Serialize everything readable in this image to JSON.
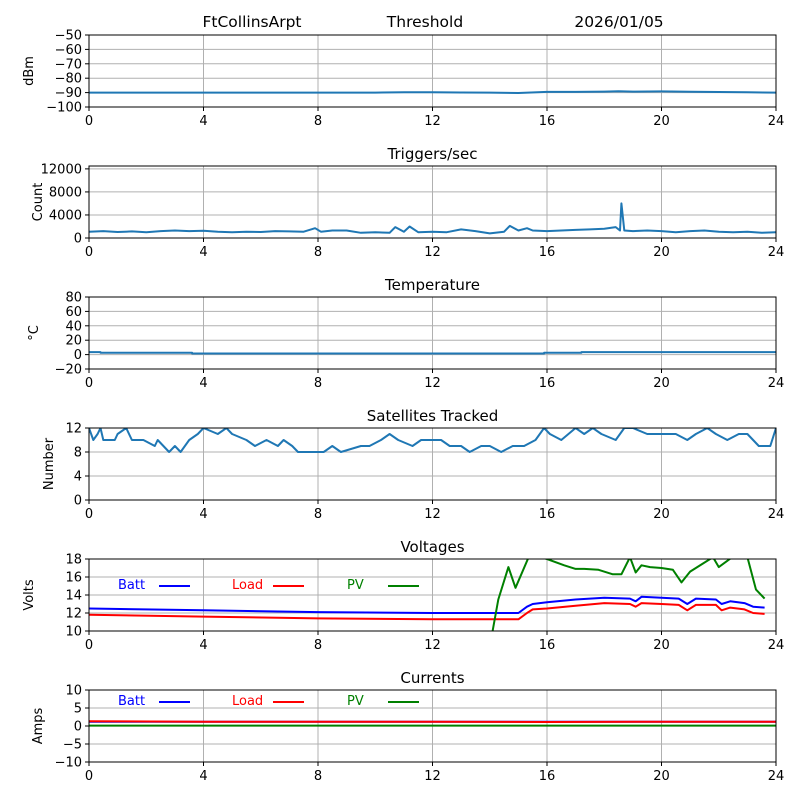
{
  "header": {
    "station": "FtCollinsArpt",
    "mode": "Threshold",
    "date": "2026/01/05"
  },
  "chart_data": [
    {
      "id": "threshold",
      "type": "line",
      "title": "",
      "xlabel": "",
      "ylabel": "dBm",
      "xlim": [
        0,
        24
      ],
      "ylim": [
        -100,
        -50
      ],
      "xticks": [
        0,
        4,
        8,
        12,
        16,
        20,
        24
      ],
      "yticks": [
        -100,
        -90,
        -80,
        -70,
        -60,
        -50
      ],
      "ytick_labels": [
        "−100",
        "−90",
        "−80",
        "−70",
        "−60",
        "−50"
      ],
      "grid": true,
      "series": [
        {
          "name": "Threshold",
          "color": "#1f77b4",
          "x": [
            0,
            2,
            4,
            6,
            8,
            10,
            11,
            12,
            13,
            14,
            15,
            16,
            17,
            18,
            18.5,
            19,
            20,
            21,
            22,
            23,
            24
          ],
          "y": [
            -90,
            -90,
            -90,
            -90,
            -90,
            -90,
            -89.8,
            -89.7,
            -89.9,
            -90,
            -90.3,
            -89.5,
            -89.5,
            -89.3,
            -89.0,
            -89.3,
            -89.2,
            -89.4,
            -89.6,
            -89.8,
            -90
          ]
        }
      ]
    },
    {
      "id": "triggers",
      "type": "line",
      "title": "Triggers/sec",
      "xlabel": "",
      "ylabel": "Count",
      "xlim": [
        0,
        24
      ],
      "ylim": [
        0,
        12500
      ],
      "xticks": [
        0,
        4,
        8,
        12,
        16,
        20,
        24
      ],
      "yticks": [
        0,
        4000,
        8000,
        12000
      ],
      "ytick_labels": [
        "0",
        "4000",
        "8000",
        "12000"
      ],
      "grid": true,
      "series": [
        {
          "name": "Triggers",
          "color": "#1f77b4",
          "x": [
            0,
            0.5,
            1,
            1.5,
            2,
            2.5,
            3,
            3.5,
            4,
            4.5,
            5,
            5.5,
            6,
            6.5,
            7,
            7.5,
            7.9,
            8.1,
            8.5,
            9,
            9.5,
            10,
            10.5,
            10.7,
            11,
            11.2,
            11.5,
            12,
            12.5,
            13,
            13.5,
            14,
            14.5,
            14.7,
            15,
            15.3,
            15.5,
            16,
            16.5,
            17,
            17.5,
            18,
            18.4,
            18.55,
            18.6,
            18.7,
            19,
            19.5,
            20,
            20.5,
            21,
            21.5,
            22,
            22.5,
            23,
            23.5,
            24
          ],
          "y": [
            1100,
            1200,
            1050,
            1150,
            1000,
            1200,
            1300,
            1200,
            1250,
            1100,
            1000,
            1100,
            1050,
            1200,
            1150,
            1100,
            1700,
            1100,
            1300,
            1300,
            900,
            1000,
            900,
            1900,
            1100,
            2000,
            1000,
            1100,
            1000,
            1500,
            1200,
            800,
            1100,
            2100,
            1300,
            1700,
            1300,
            1200,
            1300,
            1400,
            1500,
            1600,
            1900,
            1300,
            6000,
            1300,
            1200,
            1300,
            1200,
            1000,
            1200,
            1300,
            1100,
            1000,
            1100,
            900,
            1000
          ]
        }
      ]
    },
    {
      "id": "temperature",
      "type": "line",
      "title": "Temperature",
      "xlabel": "",
      "ylabel": "°C",
      "xlim": [
        0,
        24
      ],
      "ylim": [
        -20,
        80
      ],
      "xticks": [
        0,
        4,
        8,
        12,
        16,
        20,
        24
      ],
      "yticks": [
        -20,
        0,
        20,
        40,
        60,
        80
      ],
      "ytick_labels": [
        "−20",
        "0",
        "20",
        "40",
        "60",
        "80"
      ],
      "grid": true,
      "series": [
        {
          "name": "Temperature",
          "color": "#1f77b4",
          "x": [
            0,
            0.4,
            0.4,
            3.6,
            3.6,
            15.9,
            15.9,
            17.2,
            17.2,
            24
          ],
          "y": [
            3.5,
            3.5,
            2.5,
            2.5,
            1.5,
            1.5,
            2.5,
            2.5,
            3.5,
            3.5
          ]
        }
      ]
    },
    {
      "id": "satellites",
      "type": "line",
      "title": "Satellites Tracked",
      "xlabel": "",
      "ylabel": "Number",
      "xlim": [
        0,
        24
      ],
      "ylim": [
        0,
        12
      ],
      "xticks": [
        0,
        4,
        8,
        12,
        16,
        20,
        24
      ],
      "yticks": [
        0,
        4,
        8,
        12
      ],
      "ytick_labels": [
        "0",
        "4",
        "8",
        "12"
      ],
      "grid": true,
      "series": [
        {
          "name": "Satellites",
          "color": "#1f77b4",
          "x": [
            0,
            0.15,
            0.3,
            0.4,
            0.5,
            0.9,
            1.0,
            1.3,
            1.5,
            1.9,
            2.3,
            2.4,
            2.8,
            3.0,
            3.2,
            3.5,
            3.8,
            4.0,
            4.5,
            4.8,
            5.0,
            5.5,
            5.8,
            6.2,
            6.6,
            6.8,
            7.1,
            7.3,
            7.5,
            7.9,
            8.2,
            8.5,
            8.8,
            9.5,
            9.8,
            10.2,
            10.5,
            10.8,
            11.3,
            11.6,
            12.0,
            12.3,
            12.6,
            13.0,
            13.3,
            13.7,
            14.0,
            14.4,
            14.8,
            15.2,
            15.6,
            15.9,
            16.1,
            16.5,
            17.0,
            17.3,
            17.6,
            17.9,
            18.4,
            18.7,
            19.0,
            19.5,
            20.0,
            20.5,
            20.9,
            21.2,
            21.6,
            21.9,
            22.3,
            22.7,
            23.0,
            23.4,
            23.8,
            24
          ],
          "y": [
            12,
            10,
            11,
            12,
            10,
            10,
            11,
            12,
            10,
            10,
            9,
            10,
            8,
            9,
            8,
            10,
            11,
            12,
            11,
            12,
            11,
            10,
            9,
            10,
            9,
            10,
            9,
            8,
            8,
            8,
            8,
            9,
            8,
            9,
            9,
            10,
            11,
            10,
            9,
            10,
            10,
            10,
            9,
            9,
            8,
            9,
            9,
            8,
            9,
            9,
            10,
            12,
            11,
            10,
            12,
            11,
            12,
            11,
            10,
            12,
            12,
            11,
            11,
            11,
            10,
            11,
            12,
            11,
            10,
            11,
            11,
            9,
            9,
            12
          ]
        }
      ]
    },
    {
      "id": "voltages",
      "type": "line",
      "title": "Voltages",
      "xlabel": "",
      "ylabel": "Volts",
      "xlim": [
        0,
        24
      ],
      "ylim": [
        10,
        18
      ],
      "xticks": [
        0,
        4,
        8,
        12,
        16,
        20,
        24
      ],
      "yticks": [
        10,
        12,
        14,
        16,
        18
      ],
      "ytick_labels": [
        "10",
        "12",
        "14",
        "16",
        "18"
      ],
      "grid": true,
      "legend": "top-left-inline",
      "series": [
        {
          "name": "Batt",
          "color": "#0000ff",
          "x": [
            0,
            4,
            8,
            12,
            15.0,
            15.3,
            15.5,
            16,
            17,
            18,
            18.9,
            19.1,
            19.3,
            20,
            20.6,
            20.9,
            21.2,
            21.9,
            22.1,
            22.4,
            22.9,
            23.2,
            23.6
          ],
          "y": [
            12.5,
            12.3,
            12.1,
            12.0,
            12.0,
            12.7,
            13.0,
            13.2,
            13.5,
            13.7,
            13.6,
            13.3,
            13.8,
            13.7,
            13.6,
            13.0,
            13.6,
            13.5,
            13.0,
            13.3,
            13.1,
            12.7,
            12.6
          ]
        },
        {
          "name": "Load",
          "color": "#ff0000",
          "x": [
            0,
            4,
            8,
            12,
            15.0,
            15.3,
            15.5,
            16,
            17,
            18,
            18.9,
            19.1,
            19.3,
            20,
            20.6,
            20.9,
            21.2,
            21.9,
            22.1,
            22.4,
            22.9,
            23.2,
            23.6
          ],
          "y": [
            11.8,
            11.6,
            11.4,
            11.3,
            11.3,
            12.0,
            12.4,
            12.5,
            12.8,
            13.1,
            13.0,
            12.7,
            13.1,
            13.0,
            12.9,
            12.3,
            12.9,
            12.9,
            12.3,
            12.6,
            12.4,
            12.0,
            11.9
          ]
        },
        {
          "name": "PV",
          "color": "#008000",
          "x": [
            14.1,
            14.3,
            14.65,
            14.9,
            15.4,
            16.0,
            16.6,
            17.0,
            17.3,
            17.8,
            18.3,
            18.6,
            18.9,
            19.1,
            19.3,
            19.6,
            20.0,
            20.4,
            20.7,
            21.0,
            21.4,
            21.8,
            22.0,
            22.3,
            22.6,
            23.0,
            23.3,
            23.6
          ],
          "y": [
            10,
            13.5,
            17.1,
            14.8,
            18.5,
            18.0,
            17.3,
            16.9,
            16.9,
            16.8,
            16.3,
            16.3,
            18.2,
            16.5,
            17.3,
            17.1,
            17.0,
            16.8,
            15.4,
            16.6,
            17.4,
            18.2,
            17.1,
            17.8,
            18.5,
            18.2,
            14.6,
            13.6
          ]
        }
      ]
    },
    {
      "id": "currents",
      "type": "line",
      "title": "Currents",
      "xlabel": "",
      "ylabel": "Amps",
      "xlim": [
        0,
        24
      ],
      "ylim": [
        -10,
        10
      ],
      "xticks": [
        0,
        4,
        8,
        12,
        16,
        20,
        24
      ],
      "yticks": [
        -10,
        -5,
        0,
        5,
        10
      ],
      "ytick_labels": [
        "−10",
        "−5",
        "0",
        "5",
        "10"
      ],
      "grid": true,
      "legend": "top-left-inline",
      "series": [
        {
          "name": "Batt",
          "color": "#0000ff",
          "x": [
            0,
            24
          ],
          "y": [
            1.2,
            1.2
          ]
        },
        {
          "name": "Load",
          "color": "#ff0000",
          "x": [
            0,
            4,
            8,
            12,
            16,
            20,
            24
          ],
          "y": [
            1.3,
            1.2,
            1.2,
            1.2,
            1.1,
            1.2,
            1.2
          ]
        },
        {
          "name": "PV",
          "color": "#008000",
          "x": [
            0,
            24
          ],
          "y": [
            0.1,
            0.1
          ]
        }
      ]
    }
  ]
}
